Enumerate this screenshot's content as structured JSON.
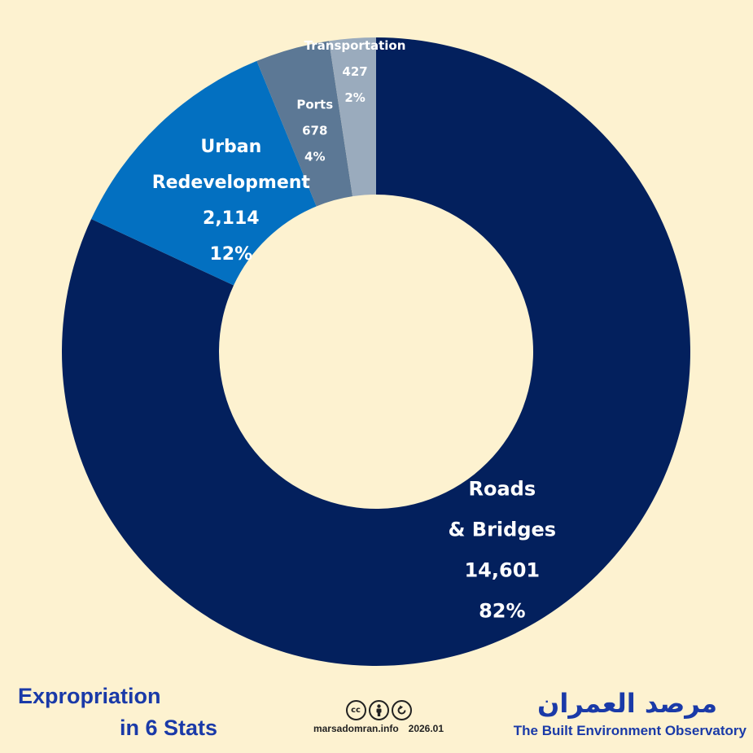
{
  "chart_data": {
    "type": "pie",
    "style": "donut",
    "start": "top",
    "direction": "clockwise",
    "slices": [
      {
        "name": "Roads\n& Bridges",
        "value": 14601,
        "percent": "82%",
        "color": "#03205d"
      },
      {
        "name": "Urban\nRedevelopment",
        "value": 2114,
        "percent": "12%",
        "color": "#0370c1"
      },
      {
        "name": "Ports",
        "value": 678,
        "percent": "4%",
        "color": "#5c7895"
      },
      {
        "name": "Transportation",
        "value": 427,
        "percent": "2%",
        "color": "#9aabbd"
      }
    ]
  },
  "title": {
    "line1": "Expropriation",
    "line2": "in 6 Stats"
  },
  "credits": {
    "icons": [
      "cc-icon",
      "by-attribution-icon",
      "share-alike-icon"
    ],
    "site": "marsadomran.info",
    "date": "2026.01"
  },
  "brand": {
    "arabic": "مرصد العمران",
    "english": "The Built Environment Observatory",
    "color": "#1a3aa8"
  }
}
